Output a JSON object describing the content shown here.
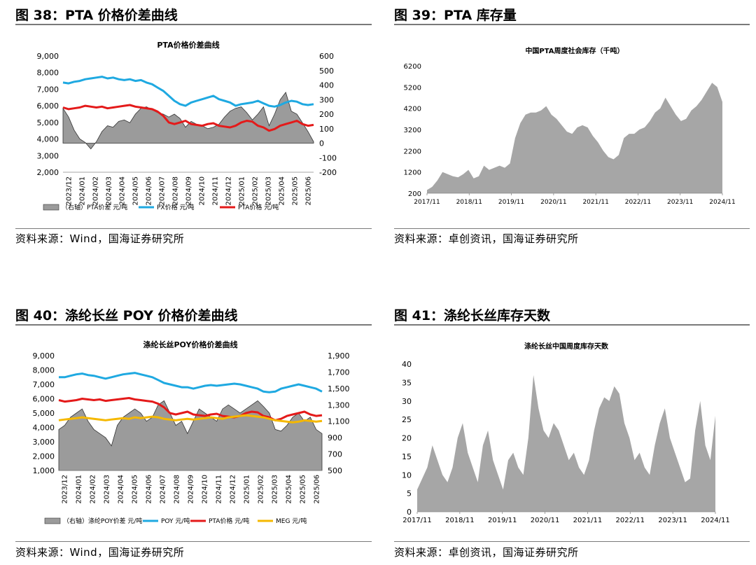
{
  "figures": [
    {
      "title": "图 38：PTA 价格价差曲线",
      "source": "资料来源：Wind，国海证券研究所"
    },
    {
      "title": "图 39：PTA 库存量",
      "source": "资料来源：卓创资讯，国海证券研究所"
    },
    {
      "title": "图 40：涤纶长丝 POY 价格价差曲线",
      "source": "资料来源：Wind，国海证券研究所"
    },
    {
      "title": "图 41：涤纶长丝库存天数",
      "source": "资料来源：卓创资讯，国海证券研究所"
    }
  ],
  "chart_data": [
    {
      "type": "line",
      "title": "PTA价格价差曲线",
      "x_ticks": [
        "2023/12",
        "2024/01",
        "2024/02",
        "2024/03",
        "2024/04",
        "2024/05",
        "2024/06",
        "2024/07",
        "2024/08",
        "2024/09",
        "2024/10",
        "2024/11",
        "2024/12",
        "2025/01",
        "2025/02",
        "2025/03",
        "2025/04",
        "2025/05",
        "2025/06"
      ],
      "ylim": [
        2000,
        9000
      ],
      "yticks": [
        "2,000",
        "3,000",
        "4,000",
        "5,000",
        "6,000",
        "7,000",
        "8,000",
        "9,000"
      ],
      "y2lim": [
        -200,
        600
      ],
      "y2ticks": [
        "-200",
        "-100",
        "0",
        "100",
        "200",
        "300",
        "400",
        "500",
        "600"
      ],
      "series": [
        {
          "name": "（右轴）PTA价差 元/吨",
          "type": "area",
          "axis": "right",
          "color": "#9b9b9b",
          "values": [
            240,
            180,
            90,
            30,
            5,
            -40,
            10,
            80,
            120,
            110,
            150,
            160,
            140,
            200,
            240,
            250,
            230,
            210,
            200,
            180,
            200,
            170,
            110,
            150,
            130,
            120,
            100,
            110,
            130,
            180,
            220,
            240,
            250,
            210,
            160,
            200,
            250,
            120,
            200,
            300,
            350,
            220,
            200,
            140,
            80,
            10
          ]
        },
        {
          "name": "PX价格 元/吨",
          "type": "line",
          "axis": "left",
          "color": "#1fa9e1",
          "values": [
            7400,
            7350,
            7450,
            7500,
            7600,
            7650,
            7700,
            7750,
            7650,
            7700,
            7600,
            7550,
            7600,
            7500,
            7550,
            7400,
            7300,
            7100,
            6900,
            6600,
            6300,
            6100,
            6000,
            6200,
            6300,
            6400,
            6500,
            6600,
            6400,
            6300,
            6200,
            6000,
            6100,
            6150,
            6200,
            6300,
            6150,
            6000,
            5950,
            6050,
            6200,
            6300,
            6250,
            6100,
            6050,
            6100
          ]
        },
        {
          "name": "PTA价格 元/吨",
          "type": "line",
          "axis": "left",
          "color": "#e41a1a",
          "values": [
            5900,
            5800,
            5850,
            5900,
            6000,
            5950,
            5900,
            5950,
            5850,
            5900,
            5950,
            6000,
            6050,
            5950,
            5900,
            5850,
            5800,
            5650,
            5400,
            5000,
            4900,
            5000,
            5100,
            4900,
            4850,
            4800,
            4900,
            4950,
            4800,
            4750,
            4700,
            4800,
            5000,
            5100,
            5050,
            4800,
            4700,
            4500,
            4600,
            4800,
            4900,
            5000,
            5100,
            4900,
            4800,
            4850
          ]
        }
      ]
    },
    {
      "type": "area",
      "title": "中国PTA周度社会库存（千吨）",
      "x_ticks": [
        "2017/11",
        "2018/11",
        "2019/11",
        "2020/11",
        "2021/11",
        "2022/11",
        "2023/11",
        "2024/11"
      ],
      "ylim": [
        200,
        6200
      ],
      "yticks": [
        "200",
        "1200",
        "2200",
        "3200",
        "4200",
        "5200",
        "6200"
      ],
      "series": [
        {
          "name": "中国PTA周度社会库存",
          "color": "#a6a6a6",
          "values": [
            350,
            500,
            800,
            1200,
            1100,
            1000,
            950,
            1100,
            1300,
            900,
            1000,
            1500,
            1300,
            1400,
            1500,
            1400,
            1600,
            2800,
            3500,
            3900,
            4000,
            4000,
            4100,
            4300,
            3900,
            3700,
            3400,
            3100,
            3000,
            3300,
            3400,
            3300,
            2900,
            2600,
            2200,
            1900,
            1800,
            2000,
            2800,
            3000,
            3000,
            3200,
            3300,
            3600,
            4000,
            4200,
            4700,
            4300,
            3900,
            3600,
            3700,
            4100,
            4300,
            4600,
            5000,
            5400,
            5200,
            4500
          ]
        }
      ]
    },
    {
      "type": "line",
      "title": "涤纶长丝POY价格价差曲线",
      "x_ticks": [
        "2023/12",
        "2024/01",
        "2024/02",
        "2024/03",
        "2024/04",
        "2024/05",
        "2024/06",
        "2024/07",
        "2024/08",
        "2024/09",
        "2024/10",
        "2024/11",
        "2024/12",
        "2025/01",
        "2025/02",
        "2025/03",
        "2025/04",
        "2025/05",
        "2025/06"
      ],
      "ylim": [
        1000,
        9000
      ],
      "yticks": [
        "1,000",
        "2,000",
        "3,000",
        "4,000",
        "5,000",
        "6,000",
        "7,000",
        "8,000",
        "9,000"
      ],
      "y2lim": [
        500,
        1900
      ],
      "y2ticks": [
        "500",
        "700",
        "900",
        "1,100",
        "1,300",
        "1,500",
        "1,700",
        "1,900"
      ],
      "series": [
        {
          "name": "（右轴）涤纶POY价差 元/吨",
          "type": "area",
          "axis": "right",
          "color": "#9b9b9b",
          "values": [
            1000,
            1050,
            1150,
            1200,
            1250,
            1100,
            1000,
            950,
            900,
            800,
            1050,
            1150,
            1200,
            1250,
            1200,
            1100,
            1150,
            1300,
            1350,
            1200,
            1050,
            1100,
            950,
            1100,
            1250,
            1200,
            1150,
            1100,
            1250,
            1300,
            1250,
            1200,
            1250,
            1300,
            1350,
            1280,
            1200,
            1000,
            980,
            1050,
            1150,
            1200,
            1100,
            1150,
            1000,
            950
          ]
        },
        {
          "name": "POY 元/吨",
          "type": "line",
          "axis": "left",
          "color": "#1fa9e1",
          "values": [
            7500,
            7500,
            7600,
            7700,
            7750,
            7650,
            7600,
            7500,
            7400,
            7500,
            7600,
            7700,
            7750,
            7800,
            7700,
            7600,
            7500,
            7300,
            7100,
            7000,
            6900,
            6800,
            6800,
            6700,
            6800,
            6900,
            6950,
            6900,
            6950,
            7000,
            7050,
            7000,
            6900,
            6800,
            6700,
            6500,
            6450,
            6500,
            6700,
            6800,
            6900,
            7000,
            6900,
            6800,
            6700,
            6500
          ]
        },
        {
          "name": "PTA价格 元/吨",
          "type": "line",
          "axis": "left",
          "color": "#e41a1a",
          "values": [
            5900,
            5800,
            5850,
            5900,
            6000,
            5950,
            5900,
            5950,
            5850,
            5900,
            5950,
            6000,
            6050,
            5950,
            5900,
            5850,
            5800,
            5650,
            5400,
            5000,
            4900,
            5000,
            5100,
            4900,
            4850,
            4800,
            4900,
            4950,
            4800,
            4750,
            4700,
            4800,
            5000,
            5100,
            5050,
            4800,
            4700,
            4500,
            4600,
            4800,
            4900,
            5000,
            5100,
            4900,
            4800,
            4850
          ]
        },
        {
          "name": "MEG 元/吨",
          "type": "line",
          "axis": "left",
          "color": "#f5b800",
          "values": [
            4500,
            4550,
            4600,
            4650,
            4700,
            4650,
            4600,
            4550,
            4500,
            4550,
            4600,
            4650,
            4600,
            4700,
            4650,
            4700,
            4750,
            4700,
            4600,
            4550,
            4500,
            4550,
            4600,
            4550,
            4600,
            4650,
            4700,
            4650,
            4600,
            4700,
            4750,
            4800,
            4850,
            4800,
            4750,
            4700,
            4600,
            4500,
            4450,
            4400,
            4350,
            4400,
            4500,
            4450,
            4400,
            4450
          ]
        }
      ]
    },
    {
      "type": "area",
      "title": "涤纶长丝中国周度库存天数",
      "x_ticks": [
        "2017/11",
        "2018/11",
        "2019/11",
        "2020/11",
        "2021/11",
        "2022/11",
        "2023/11",
        "2024/11"
      ],
      "ylim": [
        0,
        40
      ],
      "yticks": [
        "0",
        "5",
        "10",
        "15",
        "20",
        "25",
        "30",
        "35",
        "40"
      ],
      "series": [
        {
          "name": "涤纶长丝中国周度库存天数",
          "color": "#a6a6a6",
          "values": [
            6,
            9,
            12,
            18,
            14,
            10,
            8,
            12,
            20,
            24,
            16,
            12,
            8,
            18,
            22,
            14,
            10,
            6,
            14,
            16,
            12,
            10,
            20,
            37,
            28,
            22,
            20,
            24,
            22,
            18,
            14,
            16,
            12,
            10,
            14,
            22,
            28,
            31,
            30,
            34,
            32,
            24,
            20,
            14,
            16,
            12,
            10,
            18,
            24,
            28,
            20,
            16,
            12,
            8,
            9,
            22,
            30,
            18,
            14,
            26
          ]
        }
      ]
    }
  ]
}
